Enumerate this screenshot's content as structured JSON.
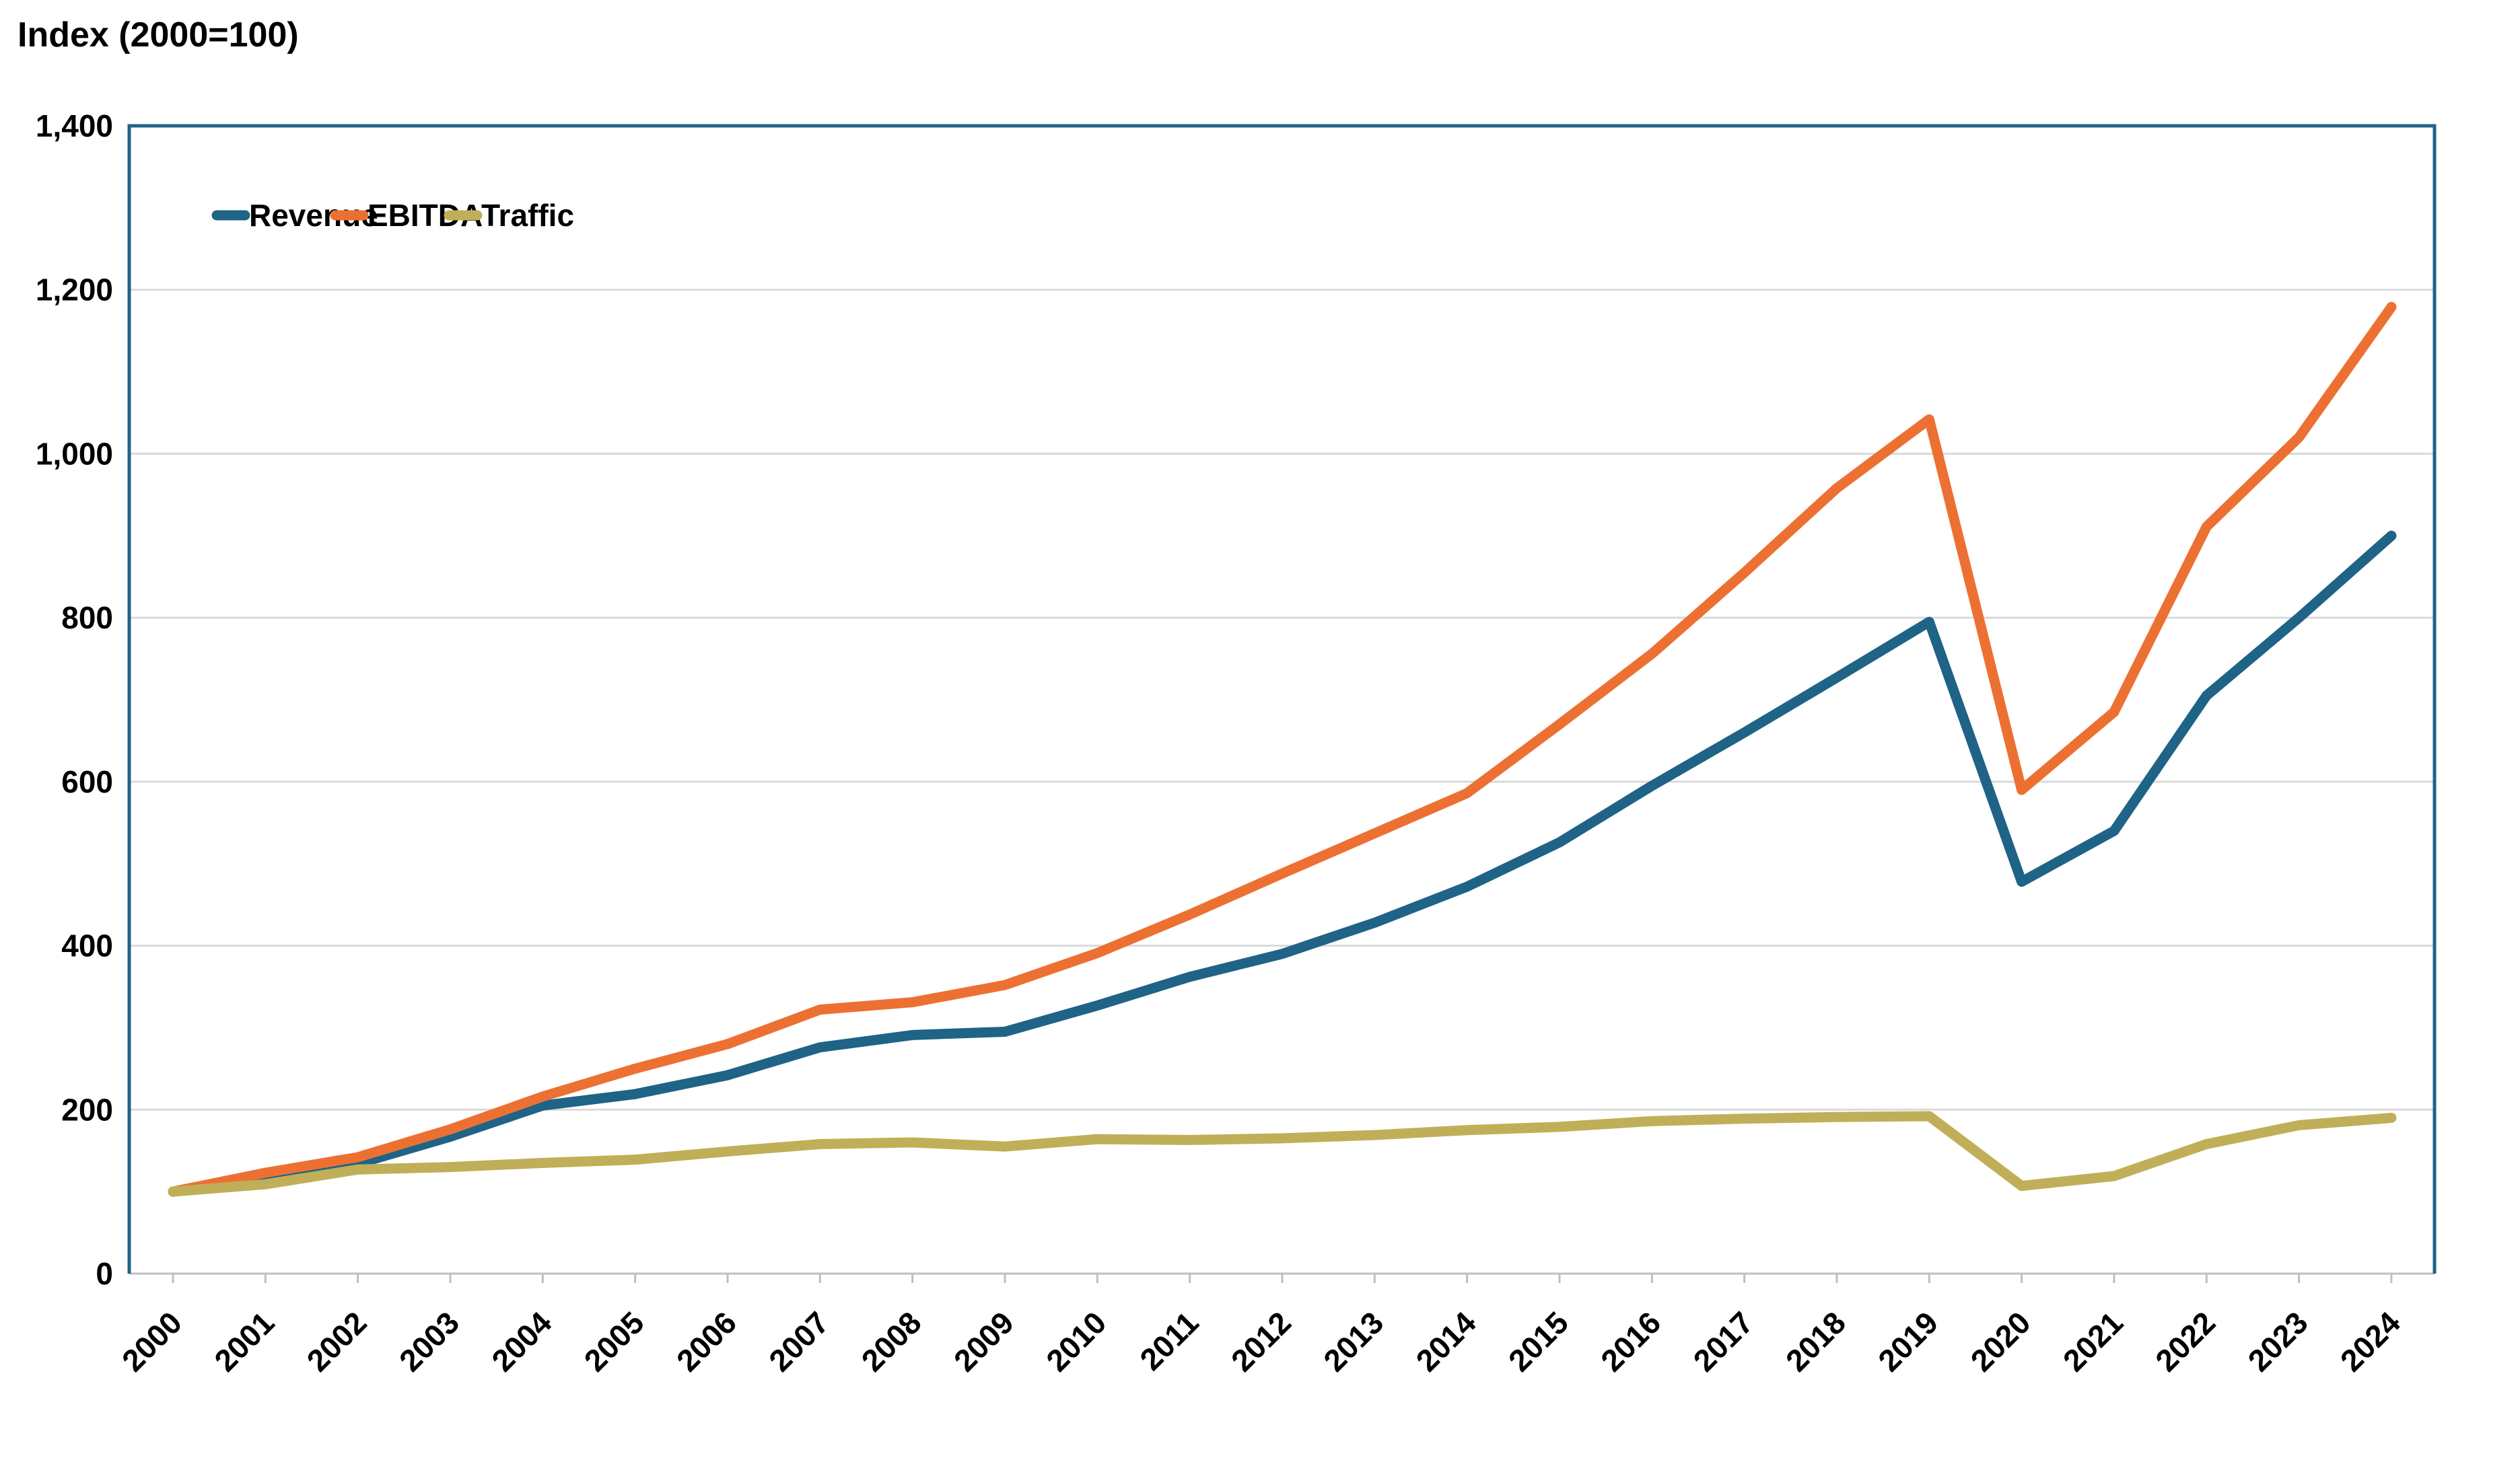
{
  "title": "Index (2000=100)",
  "colors": {
    "revenue": "#1F6386",
    "ebitda": "#ED7033",
    "traffic": "#C0AF58",
    "grid": "#D9D9D9",
    "axis": "#BFBFBF",
    "frame": "#1F6386",
    "text": "#000000",
    "background": "#FFFFFF"
  },
  "chart_data": {
    "type": "line",
    "title": "Index (2000=100)",
    "xlabel": "",
    "ylabel": "Index (2000=100)",
    "x": [
      2000,
      2001,
      2002,
      2003,
      2004,
      2005,
      2006,
      2007,
      2008,
      2009,
      2010,
      2011,
      2012,
      2013,
      2014,
      2015,
      2016,
      2017,
      2018,
      2019,
      2020,
      2021,
      2022,
      2023,
      2024
    ],
    "series": [
      {
        "name": "Revenue",
        "color": "#1F6386",
        "values": [
          100,
          116,
          134,
          167,
          205,
          219,
          242,
          276,
          291,
          295,
          327,
          362,
          390,
          428,
          472,
          526,
          595,
          660,
          727,
          795,
          478,
          540,
          705,
          800,
          900
        ]
      },
      {
        "name": "EBITDA",
        "color": "#ED7033",
        "values": [
          100,
          123,
          142,
          176,
          216,
          250,
          280,
          322,
          331,
          352,
          391,
          438,
          488,
          537,
          586,
          670,
          756,
          855,
          958,
          1042,
          590,
          685,
          911,
          1020,
          1179
        ]
      },
      {
        "name": "Traffic",
        "color": "#C0AF58",
        "values": [
          100,
          109,
          127,
          130,
          135,
          139,
          149,
          158,
          160,
          155,
          164,
          163,
          165,
          169,
          175,
          179,
          186,
          189,
          191,
          192,
          107,
          119,
          158,
          181,
          190
        ]
      }
    ],
    "ylim": [
      0,
      1400
    ],
    "yticks": [
      0,
      200,
      400,
      600,
      800,
      1000,
      1200,
      1400
    ],
    "ytick_labels": [
      "0",
      "200",
      "400",
      "600",
      "800",
      "1,000",
      "1,200",
      "1,400"
    ],
    "grid": true,
    "legend_position": "top-left",
    "legend": [
      "Revenue",
      "EBITDA",
      "Traffic"
    ]
  }
}
